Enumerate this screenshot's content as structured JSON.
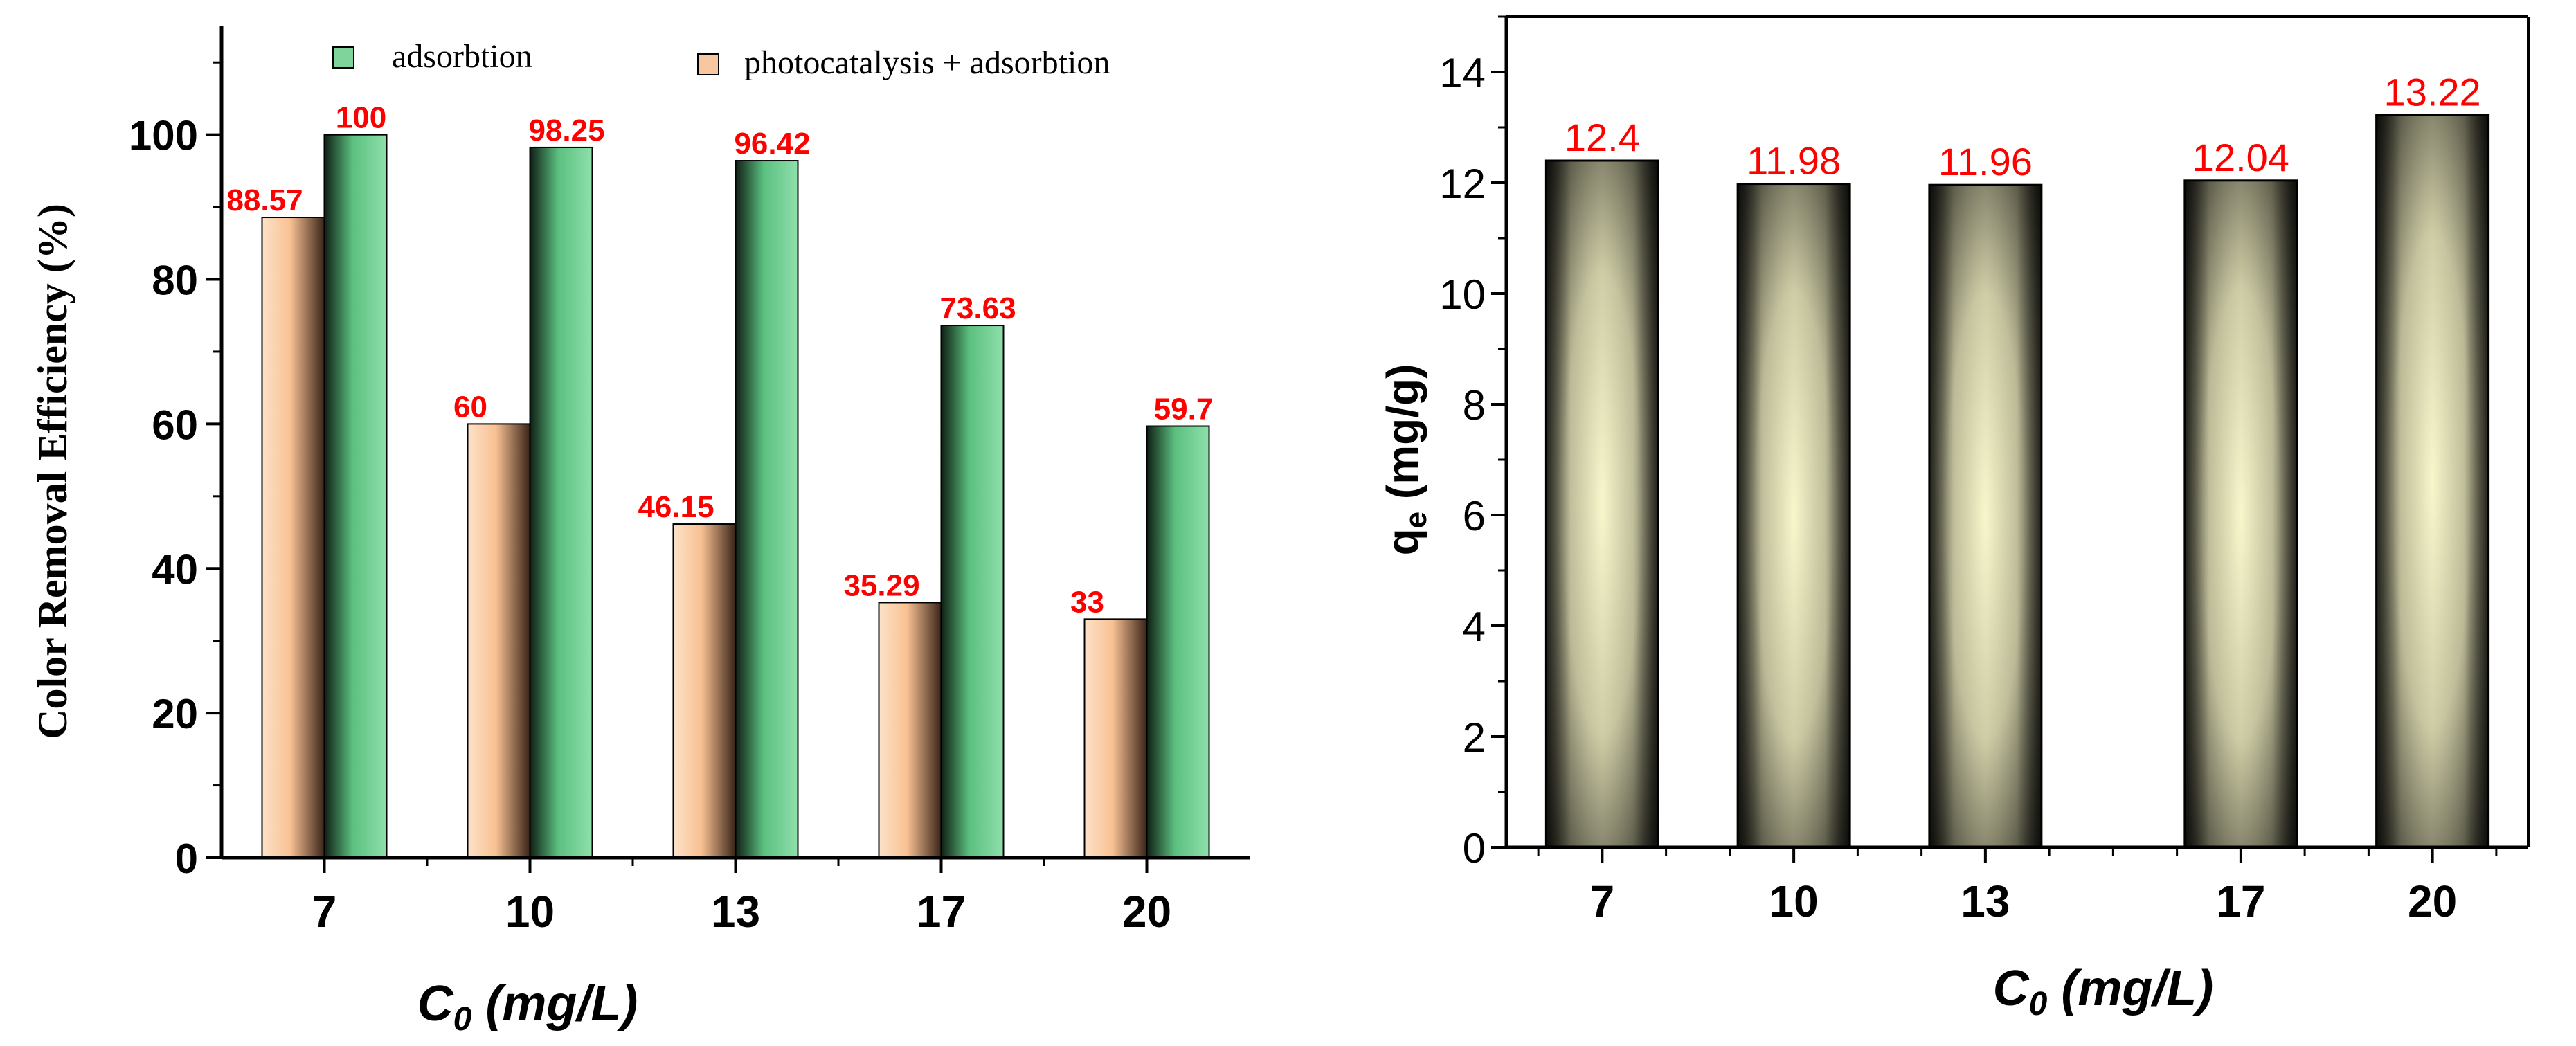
{
  "chart_data": [
    {
      "type": "bar",
      "title": "",
      "categories": [
        "7",
        "10",
        "13",
        "17",
        "20"
      ],
      "xlabel_base": "C",
      "xlabel_sub": "0",
      "xlabel_rest": " (mg/L)",
      "ylabel": "Color Removal Efficiency (%)",
      "ylim": [
        0,
        115
      ],
      "yticks": [
        "0",
        "20",
        "40",
        "60",
        "80",
        "100"
      ],
      "legend_position": "top",
      "series": [
        {
          "name": "photocatalysis + adsorbtion",
          "values": [
            88.57,
            60,
            46.15,
            35.29,
            33
          ],
          "labels": [
            "88.57",
            "60",
            "46.15",
            "35.29",
            "33"
          ],
          "color": "#f8c7a0"
        },
        {
          "name": "adsorbtion",
          "values": [
            100,
            98.25,
            96.42,
            73.63,
            59.7
          ],
          "labels": [
            "100",
            "98.25",
            "96.42",
            "73.63",
            "59.7"
          ],
          "color": "#7fd49c"
        }
      ],
      "label_color": "#ff0000"
    },
    {
      "type": "bar",
      "title": "",
      "categories": [
        "7",
        "10",
        "13",
        "17",
        "20"
      ],
      "x_positions": [
        7,
        10,
        13,
        17,
        20
      ],
      "xlim": [
        5.5,
        21.5
      ],
      "xlabel_base": "C",
      "xlabel_sub": "0",
      "xlabel_rest": " (mg/L)",
      "ylabel_base": "q",
      "ylabel_sub": "e",
      "ylabel_rest": " (mg/g)",
      "ylim": [
        0,
        15
      ],
      "yticks": [
        "0",
        "2",
        "4",
        "6",
        "8",
        "10",
        "12",
        "14"
      ],
      "series": [
        {
          "name": "qe",
          "values": [
            12.4,
            11.98,
            11.96,
            12.04,
            13.22
          ],
          "labels": [
            "12.4",
            "11.98",
            "11.96",
            "12.04",
            "13.22"
          ],
          "color": "#f6f5c8"
        }
      ],
      "label_color": "#ff0000"
    }
  ]
}
